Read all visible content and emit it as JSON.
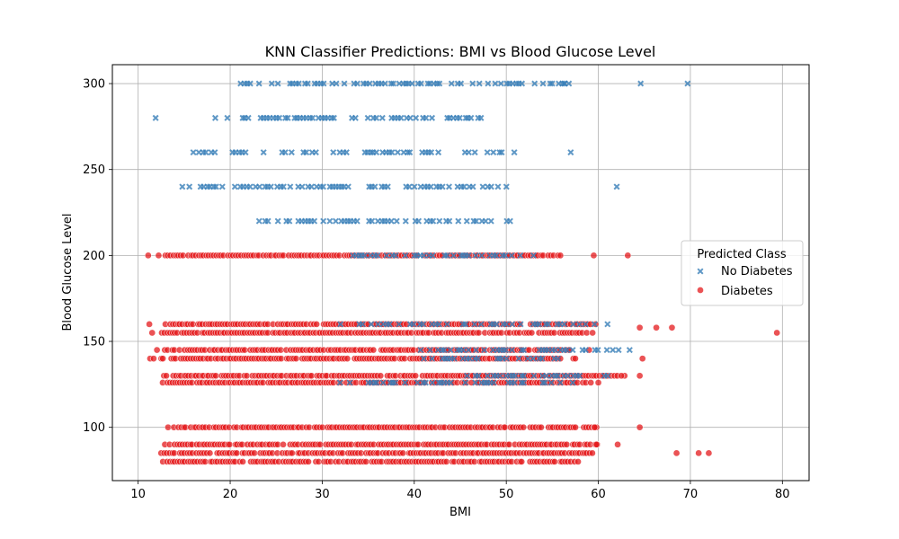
{
  "chart_data": {
    "type": "scatter",
    "title": "KNN Classifier Predictions: BMI vs Blood Glucose Level",
    "xlabel": "BMI",
    "ylabel": "Blood Glucose Level",
    "xlim": [
      7.2,
      82.9
    ],
    "ylim": [
      69,
      311
    ],
    "x_ticks": [
      10,
      20,
      30,
      40,
      50,
      60,
      70,
      80
    ],
    "y_ticks": [
      100,
      150,
      200,
      250,
      300
    ],
    "grid": true,
    "legend": {
      "title": "Predicted Class",
      "placement": "right",
      "entries": [
        {
          "label": "No Diabetes",
          "marker": "x",
          "color": "#377eb8"
        },
        {
          "label": "Diabetes",
          "marker": "o",
          "color": "#e41a1c"
        }
      ]
    },
    "series": [
      {
        "name": "No Diabetes",
        "marker": "x",
        "color": "#377eb8",
        "bands": [
          {
            "y": 300,
            "x_min": 20.5,
            "x_max": 57
          },
          {
            "y": 280,
            "x_min": 18,
            "x_max": 48.5
          },
          {
            "y": 260,
            "x_min": 16,
            "x_max": 51.5
          },
          {
            "y": 240,
            "x_min": 14.5,
            "x_max": 51
          },
          {
            "y": 220,
            "x_min": 22.5,
            "x_max": 50.5
          },
          {
            "y": 200,
            "x_min": 32,
            "x_max": 53
          },
          {
            "y": 160,
            "x_min": 32,
            "x_max": 61
          },
          {
            "y": 145,
            "x_min": 40,
            "x_max": 63
          },
          {
            "y": 140,
            "x_min": 40,
            "x_max": 56
          },
          {
            "y": 130,
            "x_min": 45,
            "x_max": 61
          },
          {
            "y": 126,
            "x_min": 30,
            "x_max": 58
          }
        ],
        "points": [
          {
            "x": 11.9,
            "y": 280
          },
          {
            "x": 64.6,
            "y": 300
          },
          {
            "x": 69.7,
            "y": 300
          },
          {
            "x": 62,
            "y": 240
          },
          {
            "x": 57,
            "y": 260
          },
          {
            "x": 56.3,
            "y": 300
          },
          {
            "x": 56.8,
            "y": 300
          },
          {
            "x": 62.2,
            "y": 145
          },
          {
            "x": 63.4,
            "y": 145
          },
          {
            "x": 61,
            "y": 130
          },
          {
            "x": 61,
            "y": 160
          }
        ]
      },
      {
        "name": "Diabetes",
        "marker": "o",
        "color": "#e41a1c",
        "bands": [
          {
            "y": 200,
            "x_min": 10.8,
            "x_max": 56.5
          },
          {
            "y": 160,
            "x_min": 11,
            "x_max": 60
          },
          {
            "y": 155,
            "x_min": 11.5,
            "x_max": 60
          },
          {
            "y": 145,
            "x_min": 11.8,
            "x_max": 58
          },
          {
            "y": 140,
            "x_min": 10.8,
            "x_max": 58
          },
          {
            "y": 130,
            "x_min": 12.5,
            "x_max": 64
          },
          {
            "y": 126,
            "x_min": 11.8,
            "x_max": 60
          },
          {
            "y": 100,
            "x_min": 13,
            "x_max": 60
          },
          {
            "y": 90,
            "x_min": 11.5,
            "x_max": 60
          },
          {
            "y": 85,
            "x_min": 11.2,
            "x_max": 60
          },
          {
            "y": 80,
            "x_min": 11.8,
            "x_max": 58
          }
        ],
        "points": [
          {
            "x": 79.4,
            "y": 155
          },
          {
            "x": 63.2,
            "y": 200
          },
          {
            "x": 59.5,
            "y": 200
          },
          {
            "x": 64.5,
            "y": 158
          },
          {
            "x": 66.3,
            "y": 158
          },
          {
            "x": 68,
            "y": 158
          },
          {
            "x": 64.8,
            "y": 140
          },
          {
            "x": 64.5,
            "y": 130
          },
          {
            "x": 64.5,
            "y": 100
          },
          {
            "x": 68.5,
            "y": 85
          },
          {
            "x": 70.9,
            "y": 85
          },
          {
            "x": 72,
            "y": 85
          },
          {
            "x": 62.1,
            "y": 90
          },
          {
            "x": 59.8,
            "y": 90
          },
          {
            "x": 59.6,
            "y": 100
          },
          {
            "x": 57.8,
            "y": 80
          },
          {
            "x": 60,
            "y": 126
          },
          {
            "x": 59,
            "y": 145
          },
          {
            "x": 62.5,
            "y": 130
          }
        ]
      }
    ]
  }
}
